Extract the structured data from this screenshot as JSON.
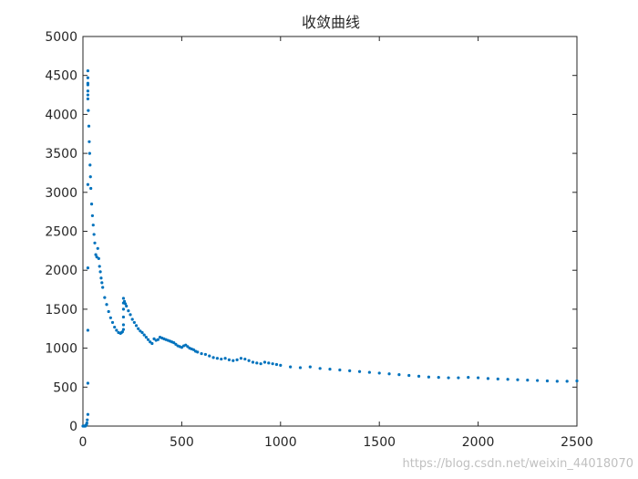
{
  "chart_data": {
    "type": "scatter",
    "title": "收敛曲线",
    "xlabel": "",
    "ylabel": "",
    "xlim": [
      0,
      2500
    ],
    "ylim": [
      0,
      5000
    ],
    "xticks": [
      0,
      500,
      1000,
      1500,
      2000,
      2500
    ],
    "yticks": [
      0,
      500,
      1000,
      1500,
      2000,
      2500,
      3000,
      3500,
      4000,
      4500,
      5000
    ],
    "grid": false,
    "marker_color": "#0072BD",
    "series": [
      {
        "name": "",
        "x": [
          0,
          3,
          6,
          9,
          12,
          15,
          18,
          20,
          22,
          25,
          25,
          25,
          25,
          25,
          25,
          25,
          25,
          25,
          25,
          25,
          25,
          27,
          30,
          32,
          34,
          36,
          38,
          40,
          44,
          48,
          52,
          56,
          60,
          65,
          70,
          75,
          80,
          84,
          88,
          92,
          96,
          100,
          110,
          120,
          130,
          140,
          150,
          160,
          170,
          180,
          190,
          195,
          200,
          205,
          205,
          205,
          205,
          205,
          205,
          210,
          215,
          220,
          230,
          240,
          250,
          260,
          270,
          280,
          290,
          300,
          310,
          320,
          330,
          340,
          350,
          360,
          370,
          380,
          390,
          400,
          410,
          420,
          430,
          440,
          450,
          460,
          470,
          480,
          490,
          500,
          510,
          520,
          530,
          540,
          550,
          560,
          570,
          580,
          600,
          620,
          640,
          660,
          680,
          700,
          720,
          740,
          760,
          780,
          800,
          820,
          840,
          860,
          880,
          900,
          920,
          940,
          960,
          980,
          1000,
          1050,
          1100,
          1150,
          1200,
          1250,
          1300,
          1350,
          1400,
          1450,
          1500,
          1550,
          1600,
          1650,
          1700,
          1750,
          1800,
          1850,
          1900,
          1950,
          2000,
          2050,
          2100,
          2150,
          2200,
          2250,
          2300,
          2350,
          2400,
          2450,
          2500
        ],
        "y": [
          0,
          0,
          0,
          0,
          0,
          10,
          20,
          40,
          80,
          150,
          550,
          1230,
          2030,
          3100,
          4250,
          4400,
          4560,
          4470,
          4380,
          4300,
          4200,
          4050,
          3850,
          3650,
          3500,
          3350,
          3200,
          3050,
          2850,
          2700,
          2580,
          2460,
          2350,
          2200,
          2170,
          2280,
          2150,
          2050,
          1980,
          1900,
          1840,
          1780,
          1650,
          1560,
          1470,
          1390,
          1330,
          1270,
          1230,
          1200,
          1190,
          1200,
          1210,
          1240,
          1300,
          1400,
          1500,
          1580,
          1640,
          1600,
          1570,
          1540,
          1480,
          1430,
          1370,
          1330,
          1290,
          1250,
          1220,
          1200,
          1170,
          1140,
          1110,
          1080,
          1060,
          1120,
          1100,
          1110,
          1140,
          1130,
          1120,
          1110,
          1100,
          1090,
          1080,
          1070,
          1050,
          1030,
          1020,
          1010,
          1030,
          1040,
          1020,
          1000,
          990,
          980,
          960,
          950,
          930,
          920,
          900,
          880,
          870,
          860,
          870,
          850,
          840,
          850,
          870,
          860,
          840,
          820,
          810,
          800,
          820,
          810,
          800,
          790,
          780,
          760,
          750,
          760,
          740,
          730,
          720,
          710,
          700,
          690,
          680,
          670,
          660,
          650,
          640,
          630,
          625,
          620,
          620,
          625,
          620,
          610,
          605,
          600,
          595,
          590,
          585,
          580,
          575,
          575,
          580
        ]
      }
    ]
  },
  "watermark": "https://blog.csdn.net/weixin_44018070"
}
